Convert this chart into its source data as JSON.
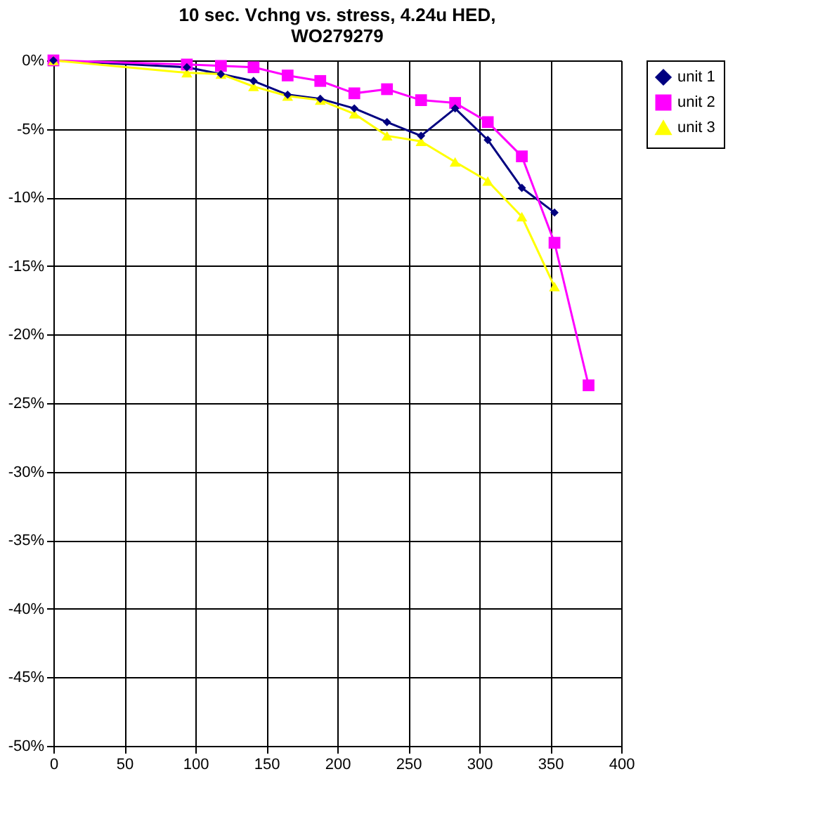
{
  "chart_data": {
    "type": "line",
    "title": [
      "10 sec. Vchng vs. stress, 4.24u HED,",
      "WO279279"
    ],
    "xlim": [
      0,
      400
    ],
    "xticks": [
      0,
      50,
      100,
      150,
      200,
      250,
      300,
      350,
      400
    ],
    "ylim": [
      -50,
      0
    ],
    "yticks": [
      {
        "value": 0,
        "label": "0%"
      },
      {
        "value": -5,
        "label": "-5%"
      },
      {
        "value": -10,
        "label": "-10%"
      },
      {
        "value": -15,
        "label": "-15%"
      },
      {
        "value": -20,
        "label": "-20%"
      },
      {
        "value": -25,
        "label": "-25%"
      },
      {
        "value": -30,
        "label": "-30%"
      },
      {
        "value": -35,
        "label": "-35%"
      },
      {
        "value": -40,
        "label": "-40%"
      },
      {
        "value": -45,
        "label": "-45%"
      },
      {
        "value": -50,
        "label": "-50%"
      }
    ],
    "grid": true,
    "legend": "right",
    "series": [
      {
        "name": "unit 1",
        "color": "#000080",
        "marker": "diamond",
        "x": [
          0,
          94,
          118,
          141,
          165,
          188,
          212,
          235,
          259,
          283,
          306,
          330,
          353
        ],
        "values": [
          0,
          -0.5,
          -1,
          -1.5,
          -2.5,
          -2.8,
          -3.5,
          -4.5,
          -5.5,
          -3.5,
          -5.8,
          -9.3,
          -11.1
        ]
      },
      {
        "name": "unit 2",
        "color": "#ff00ff",
        "marker": "square",
        "x": [
          0,
          94,
          118,
          141,
          165,
          188,
          212,
          235,
          259,
          283,
          306,
          330,
          353,
          377
        ],
        "values": [
          0,
          -0.3,
          -0.4,
          -0.5,
          -1.1,
          -1.5,
          -2.4,
          -2.1,
          -2.9,
          -3.1,
          -4.5,
          -7.0,
          -13.3,
          -23.7
        ]
      },
      {
        "name": "unit 3",
        "color": "#ffff00",
        "marker": "triangle",
        "x": [
          0,
          94,
          118,
          141,
          165,
          188,
          212,
          235,
          259,
          283,
          306,
          330,
          353
        ],
        "values": [
          0,
          -0.9,
          -1,
          -1.9,
          -2.6,
          -2.9,
          -3.9,
          -5.5,
          -5.9,
          -7.4,
          -8.8,
          -11.4,
          -16.5
        ]
      }
    ]
  }
}
